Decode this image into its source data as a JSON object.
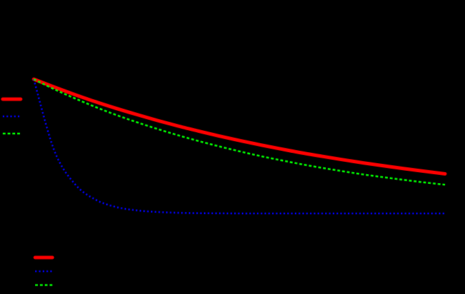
{
  "chart_data": {
    "type": "line",
    "title": "",
    "xlabel": "",
    "ylabel": "",
    "xlim": [
      0,
      20
    ],
    "ylim": [
      0,
      1
    ],
    "grid": false,
    "legend": "left",
    "background": "#000000",
    "x": [
      0,
      1,
      2,
      3,
      4,
      5,
      6,
      7,
      8,
      9,
      10,
      11,
      12,
      13,
      14,
      15,
      16,
      17,
      18,
      19,
      20
    ],
    "series": [
      {
        "color": "#ff0000",
        "style": "solid",
        "values": [
          1.0,
          0.941,
          0.885,
          0.832,
          0.783,
          0.737,
          0.693,
          0.652,
          0.614,
          0.577,
          0.543,
          0.511,
          0.481,
          0.452,
          0.426,
          0.401,
          0.377,
          0.355,
          0.334,
          0.314,
          0.295
        ]
      },
      {
        "color": "#0000ff",
        "style": "dotted",
        "values": [
          1.0,
          0.468,
          0.219,
          0.103,
          0.048,
          0.023,
          0.011,
          0.005,
          0.002,
          0.001,
          0.0,
          0.0,
          0.0,
          0.0,
          0.0,
          0.0,
          0.0,
          0.0,
          0.0,
          0.0,
          0.0
        ]
      },
      {
        "color": "#00ff00",
        "style": "dashed",
        "values": [
          1.0,
          0.925,
          0.857,
          0.793,
          0.734,
          0.68,
          0.63,
          0.583,
          0.54,
          0.5,
          0.463,
          0.428,
          0.397,
          0.367,
          0.34,
          0.315,
          0.291,
          0.27,
          0.25,
          0.231,
          0.214
        ]
      }
    ]
  }
}
